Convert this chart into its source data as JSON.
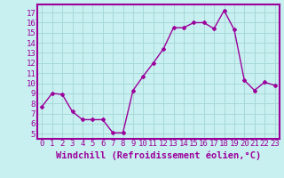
{
  "x": [
    0,
    1,
    2,
    3,
    4,
    5,
    6,
    7,
    8,
    9,
    10,
    11,
    12,
    13,
    14,
    15,
    16,
    17,
    18,
    19,
    20,
    21,
    22,
    23
  ],
  "y": [
    7.7,
    9.0,
    8.9,
    7.2,
    6.4,
    6.4,
    6.4,
    5.1,
    5.1,
    9.3,
    10.7,
    12.0,
    13.4,
    15.5,
    15.5,
    16.0,
    16.0,
    15.4,
    17.2,
    15.3,
    10.3,
    9.3,
    10.1,
    9.8
  ],
  "line_color": "#9b009b",
  "marker": "D",
  "marker_size": 2.0,
  "xlabel": "Windchill (Refroidissement éolien,°C)",
  "xlabel_fontsize": 7.5,
  "yticks": [
    5,
    6,
    7,
    8,
    9,
    10,
    11,
    12,
    13,
    14,
    15,
    16,
    17
  ],
  "ylim": [
    4.5,
    17.8
  ],
  "xlim": [
    -0.5,
    23.5
  ],
  "background_color": "#c8f0f0",
  "grid_color": "#a8d8d8",
  "tick_color": "#9b009b",
  "tick_fontsize": 6.5,
  "line_width": 1.0,
  "border_color": "#9b009b",
  "border_width": 1.5
}
